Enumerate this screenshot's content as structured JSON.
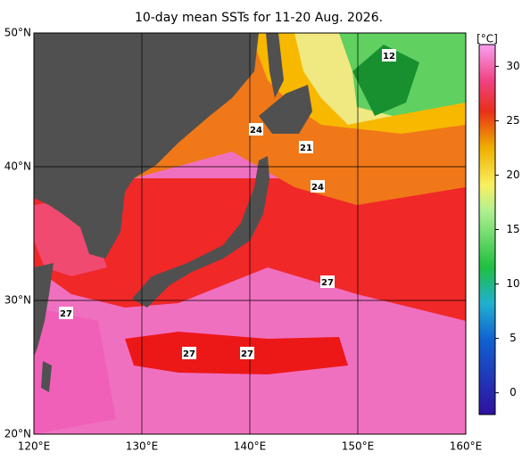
{
  "title": "10-day mean SSTs for 11-20 Aug. 2026.",
  "map": {
    "lon_range": [
      120,
      160
    ],
    "lat_range": [
      20,
      50
    ],
    "lon_ticks": [
      {
        "value": 120,
        "label": "120°E"
      },
      {
        "value": 130,
        "label": "130°E"
      },
      {
        "value": 140,
        "label": "140°E"
      },
      {
        "value": 150,
        "label": "150°E"
      },
      {
        "value": 160,
        "label": "160°E"
      }
    ],
    "lat_ticks": [
      {
        "value": 20,
        "label": "20°N"
      },
      {
        "value": 30,
        "label": "30°N"
      },
      {
        "value": 40,
        "label": "40°N"
      },
      {
        "value": 50,
        "label": "50°N"
      }
    ],
    "contour_labels": [
      "12",
      "24",
      "21",
      "24",
      "27",
      "27",
      "27",
      "27"
    ]
  },
  "colorbar": {
    "unit": "[°C]",
    "range": [
      -2,
      32
    ],
    "ticks": [
      0,
      5,
      10,
      15,
      20,
      25,
      30
    ]
  }
}
